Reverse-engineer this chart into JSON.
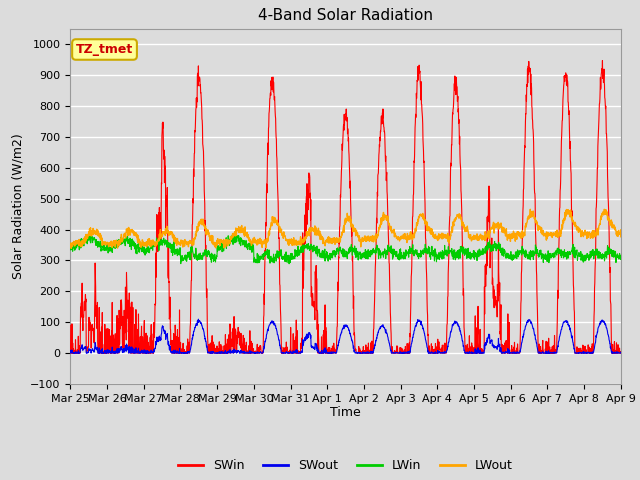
{
  "title": "4-Band Solar Radiation",
  "xlabel": "Time",
  "ylabel": "Solar Radiation (W/m2)",
  "ylim": [
    -100,
    1050
  ],
  "background_color": "#dcdcdc",
  "plot_bg_color": "#dcdcdc",
  "grid_color": "#ffffff",
  "annotation_text": "TZ_tmet",
  "annotation_bg": "#ffff99",
  "annotation_border": "#ccaa00",
  "x_tick_labels": [
    "Mar 25",
    "Mar 26",
    "Mar 27",
    "Mar 28",
    "Mar 29",
    "Mar 30",
    "Mar 31",
    "Apr 1",
    "Apr 2",
    "Apr 3",
    "Apr 4",
    "Apr 5",
    "Apr 6",
    "Apr 7",
    "Apr 8",
    "Apr 9"
  ],
  "colors": {
    "SWin": "#ff0000",
    "SWout": "#0000ee",
    "LWin": "#00cc00",
    "LWout": "#ffa500"
  },
  "n_days": 15,
  "title_fontsize": 11,
  "label_fontsize": 9,
  "tick_fontsize": 8
}
